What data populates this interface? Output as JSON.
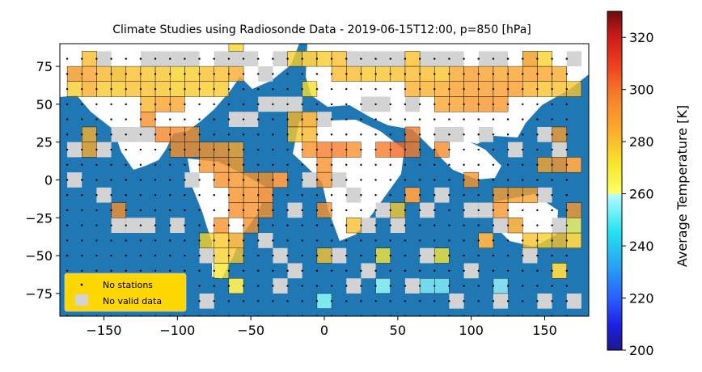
{
  "chart_data": {
    "type": "heatmap",
    "title": "Climate Studies using Radiosonde Data - 2019-06-15T12:00, p=850 [hPa]",
    "xlabel": "",
    "ylabel": "",
    "xlim": [
      -180,
      180
    ],
    "ylim": [
      -90,
      90
    ],
    "x_ticks": [
      -150,
      -100,
      -50,
      0,
      50,
      100,
      150
    ],
    "y_ticks": [
      -75,
      -50,
      -25,
      0,
      25,
      50,
      75
    ],
    "x_tick_labels": [
      "−150",
      "−100",
      "−50",
      "0",
      "50",
      "100",
      "150"
    ],
    "y_tick_labels": [
      "−75",
      "−50",
      "−25",
      "0",
      "25",
      "50",
      "75"
    ],
    "cell_size_deg": 10,
    "colorbar": {
      "label": "Average Temperature [K]",
      "range": [
        200,
        330
      ],
      "ticks": [
        200,
        220,
        240,
        260,
        280,
        300,
        320
      ],
      "tick_labels": [
        "200",
        "220",
        "240",
        "260",
        "280",
        "300",
        "320"
      ]
    },
    "legend": {
      "placement": "lower-left",
      "background": "#ffd700",
      "entries": [
        "No stations",
        "No valid data"
      ]
    },
    "colors": {
      "ocean": "#1f77b4",
      "land": "#ffffff",
      "no_valid_data": "#d3d3d3",
      "no_stations_marker": "#000000"
    },
    "no_valid_data_cells": [
      [
        -150,
        80
      ],
      [
        -170,
        70
      ],
      [
        -140,
        70
      ],
      [
        -120,
        80
      ],
      [
        -110,
        80
      ],
      [
        -100,
        80
      ],
      [
        -90,
        80
      ],
      [
        -70,
        80
      ],
      [
        -60,
        80
      ],
      [
        -50,
        80
      ],
      [
        -40,
        70
      ],
      [
        -30,
        80
      ],
      [
        -10,
        80
      ],
      [
        20,
        80
      ],
      [
        30,
        80
      ],
      [
        40,
        80
      ],
      [
        50,
        80
      ],
      [
        70,
        80
      ],
      [
        80,
        80
      ],
      [
        90,
        80
      ],
      [
        110,
        80
      ],
      [
        120,
        80
      ],
      [
        140,
        80
      ],
      [
        170,
        80
      ],
      [
        -170,
        20
      ],
      [
        -150,
        20
      ],
      [
        -140,
        30
      ],
      [
        -130,
        30
      ],
      [
        -120,
        30
      ],
      [
        -60,
        40
      ],
      [
        -50,
        40
      ],
      [
        -40,
        50
      ],
      [
        -30,
        50
      ],
      [
        -20,
        50
      ],
      [
        -10,
        40
      ],
      [
        0,
        40
      ],
      [
        30,
        50
      ],
      [
        40,
        50
      ],
      [
        60,
        50
      ],
      [
        80,
        30
      ],
      [
        90,
        30
      ],
      [
        110,
        30
      ],
      [
        130,
        20
      ],
      [
        150,
        30
      ],
      [
        160,
        20
      ],
      [
        170,
        10
      ],
      [
        -170,
        0
      ],
      [
        -150,
        -10
      ],
      [
        -140,
        -30
      ],
      [
        -130,
        -30
      ],
      [
        -120,
        -30
      ],
      [
        -100,
        -30
      ],
      [
        -90,
        0
      ],
      [
        -40,
        -10
      ],
      [
        -30,
        0
      ],
      [
        -20,
        -20
      ],
      [
        -10,
        0
      ],
      [
        10,
        0
      ],
      [
        20,
        -10
      ],
      [
        30,
        -30
      ],
      [
        40,
        -20
      ],
      [
        50,
        -30
      ],
      [
        60,
        -10
      ],
      [
        70,
        -20
      ],
      [
        80,
        -10
      ],
      [
        100,
        -20
      ],
      [
        110,
        -20
      ],
      [
        120,
        -30
      ],
      [
        130,
        -30
      ],
      [
        150,
        -10
      ],
      [
        160,
        -30
      ],
      [
        170,
        -40
      ],
      [
        -80,
        -50
      ],
      [
        -60,
        -40
      ],
      [
        -40,
        -40
      ],
      [
        -30,
        -50
      ],
      [
        -20,
        -60
      ],
      [
        10,
        -50
      ],
      [
        30,
        -60
      ],
      [
        40,
        -70
      ],
      [
        60,
        -70
      ],
      [
        70,
        -50
      ],
      [
        100,
        -60
      ],
      [
        110,
        -40
      ],
      [
        140,
        -50
      ],
      [
        160,
        -60
      ],
      [
        170,
        -80
      ],
      [
        -80,
        -80
      ],
      [
        -60,
        -70
      ],
      [
        -30,
        -70
      ],
      [
        0,
        -80
      ],
      [
        20,
        -70
      ],
      [
        90,
        -80
      ],
      [
        120,
        -80
      ],
      [
        150,
        -80
      ],
      [
        -150,
        -80
      ]
    ],
    "temperature_cells": [
      {
        "lon": -160,
        "lat": 80,
        "t": 281
      },
      {
        "lon": -160,
        "lat": 70,
        "t": 287
      },
      {
        "lon": -170,
        "lat": 70,
        "t": 287
      },
      {
        "lon": -150,
        "lat": 70,
        "t": 282
      },
      {
        "lon": -140,
        "lat": 70,
        "t": 279
      },
      {
        "lon": -130,
        "lat": 70,
        "t": 280
      },
      {
        "lon": -120,
        "lat": 70,
        "t": 279
      },
      {
        "lon": -110,
        "lat": 70,
        "t": 279
      },
      {
        "lon": -100,
        "lat": 70,
        "t": 276
      },
      {
        "lon": -90,
        "lat": 70,
        "t": 277
      },
      {
        "lon": -80,
        "lat": 70,
        "t": 280
      },
      {
        "lon": -70,
        "lat": 70,
        "t": 280
      },
      {
        "lon": -60,
        "lat": 70,
        "t": 284
      },
      {
        "lon": -60,
        "lat": 90,
        "t": 275
      },
      {
        "lon": -170,
        "lat": 60,
        "t": 277
      },
      {
        "lon": -160,
        "lat": 60,
        "t": 284
      },
      {
        "lon": -150,
        "lat": 60,
        "t": 278
      },
      {
        "lon": -140,
        "lat": 60,
        "t": 278
      },
      {
        "lon": -130,
        "lat": 60,
        "t": 280
      },
      {
        "lon": -120,
        "lat": 60,
        "t": 280
      },
      {
        "lon": -110,
        "lat": 60,
        "t": 279
      },
      {
        "lon": -100,
        "lat": 60,
        "t": 277
      },
      {
        "lon": -90,
        "lat": 60,
        "t": 278
      },
      {
        "lon": -80,
        "lat": 60,
        "t": 277
      },
      {
        "lon": -70,
        "lat": 60,
        "t": 278
      },
      {
        "lon": -120,
        "lat": 50,
        "t": 282
      },
      {
        "lon": -110,
        "lat": 50,
        "t": 287
      },
      {
        "lon": -100,
        "lat": 50,
        "t": 286
      },
      {
        "lon": -120,
        "lat": 40,
        "t": 293
      },
      {
        "lon": -110,
        "lat": 30,
        "t": 296
      },
      {
        "lon": -100,
        "lat": 30,
        "t": 294
      },
      {
        "lon": -90,
        "lat": 30,
        "t": 293
      },
      {
        "lon": -160,
        "lat": 30,
        "t": 283
      },
      {
        "lon": -160,
        "lat": 20,
        "t": 284
      },
      {
        "lon": -100,
        "lat": 20,
        "t": 292
      },
      {
        "lon": -90,
        "lat": 20,
        "t": 293
      },
      {
        "lon": -80,
        "lat": 20,
        "t": 291
      },
      {
        "lon": -70,
        "lat": 20,
        "t": 290
      },
      {
        "lon": -60,
        "lat": 20,
        "t": 285
      },
      {
        "lon": -80,
        "lat": 10,
        "t": 291
      },
      {
        "lon": -70,
        "lat": 10,
        "t": 292
      },
      {
        "lon": -60,
        "lat": 10,
        "t": 289
      },
      {
        "lon": -70,
        "lat": 0,
        "t": 292
      },
      {
        "lon": -60,
        "lat": 0,
        "t": 291
      },
      {
        "lon": -50,
        "lat": 0,
        "t": 291
      },
      {
        "lon": -40,
        "lat": 0,
        "t": 292
      },
      {
        "lon": -30,
        "lat": 0,
        "t": 293
      },
      {
        "lon": -60,
        "lat": -10,
        "t": 292
      },
      {
        "lon": -50,
        "lat": -10,
        "t": 292
      },
      {
        "lon": -40,
        "lat": -10,
        "t": 294
      },
      {
        "lon": -60,
        "lat": -20,
        "t": 293
      },
      {
        "lon": -50,
        "lat": -20,
        "t": 292
      },
      {
        "lon": -40,
        "lat": -20,
        "t": 292
      },
      {
        "lon": -140,
        "lat": -20,
        "t": 292
      },
      {
        "lon": -70,
        "lat": -30,
        "t": 292
      },
      {
        "lon": -50,
        "lat": -30,
        "t": 292
      },
      {
        "lon": -70,
        "lat": -40,
        "t": 278
      },
      {
        "lon": -60,
        "lat": -40,
        "t": 283
      },
      {
        "lon": -70,
        "lat": -50,
        "t": 276
      },
      {
        "lon": -60,
        "lat": -50,
        "t": 279
      },
      {
        "lon": -70,
        "lat": -60,
        "t": 270
      },
      {
        "lon": -60,
        "lat": -70,
        "t": 268
      },
      {
        "lon": -20,
        "lat": 80,
        "t": 277
      },
      {
        "lon": -10,
        "lat": 80,
        "t": 278
      },
      {
        "lon": 0,
        "lat": 80,
        "t": 277
      },
      {
        "lon": -10,
        "lat": 60,
        "t": 273
      },
      {
        "lon": 10,
        "lat": 80,
        "t": 280
      },
      {
        "lon": 10,
        "lat": 70,
        "t": 281
      },
      {
        "lon": -20,
        "lat": 40,
        "t": 282
      },
      {
        "lon": -10,
        "lat": 40,
        "t": 283
      },
      {
        "lon": -20,
        "lat": 30,
        "t": 278
      },
      {
        "lon": -10,
        "lat": 30,
        "t": 282
      },
      {
        "lon": -10,
        "lat": 20,
        "t": 292
      },
      {
        "lon": 0,
        "lat": 20,
        "t": 298
      },
      {
        "lon": 10,
        "lat": 20,
        "t": 298
      },
      {
        "lon": 20,
        "lat": 20,
        "t": 292
      },
      {
        "lon": 0,
        "lat": 10,
        "t": 292
      },
      {
        "lon": 0,
        "lat": 0,
        "t": 293
      },
      {
        "lon": 0,
        "lat": -20,
        "t": 292
      },
      {
        "lon": 0,
        "lat": -50,
        "t": 279
      },
      {
        "lon": 0,
        "lat": -80,
        "t": 252
      },
      {
        "lon": 20,
        "lat": -30,
        "t": 280
      },
      {
        "lon": 60,
        "lat": -10,
        "t": 292
      },
      {
        "lon": 40,
        "lat": -50,
        "t": 270
      },
      {
        "lon": 40,
        "lat": -70,
        "t": 253
      },
      {
        "lon": 40,
        "lat": 20,
        "t": 298
      },
      {
        "lon": 50,
        "lat": 20,
        "t": 302
      },
      {
        "lon": 60,
        "lat": 20,
        "t": 298
      },
      {
        "lon": 60,
        "lat": 30,
        "t": 298
      },
      {
        "lon": 80,
        "lat": 20,
        "t": 294
      },
      {
        "lon": 60,
        "lat": 80,
        "t": 280
      },
      {
        "lon": 60,
        "lat": 70,
        "t": 281
      },
      {
        "lon": 70,
        "lat": 70,
        "t": 281
      },
      {
        "lon": 80,
        "lat": 70,
        "t": 279
      },
      {
        "lon": 90,
        "lat": 70,
        "t": 286
      },
      {
        "lon": 100,
        "lat": 70,
        "t": 289
      },
      {
        "lon": 110,
        "lat": 70,
        "t": 287
      },
      {
        "lon": 120,
        "lat": 70,
        "t": 286
      },
      {
        "lon": 130,
        "lat": 70,
        "t": 287
      },
      {
        "lon": 140,
        "lat": 70,
        "t": 288
      },
      {
        "lon": 150,
        "lat": 70,
        "t": 286
      },
      {
        "lon": 160,
        "lat": 70,
        "t": 284
      },
      {
        "lon": 40,
        "lat": 70,
        "t": 279
      },
      {
        "lon": 50,
        "lat": 70,
        "t": 280
      },
      {
        "lon": 30,
        "lat": 70,
        "t": 278
      },
      {
        "lon": 20,
        "lat": 70,
        "t": 281
      },
      {
        "lon": 60,
        "lat": 60,
        "t": 283
      },
      {
        "lon": 70,
        "lat": 60,
        "t": 283
      },
      {
        "lon": 80,
        "lat": 60,
        "t": 284
      },
      {
        "lon": 90,
        "lat": 60,
        "t": 288
      },
      {
        "lon": 100,
        "lat": 60,
        "t": 288
      },
      {
        "lon": 110,
        "lat": 60,
        "t": 289
      },
      {
        "lon": 120,
        "lat": 60,
        "t": 288
      },
      {
        "lon": 130,
        "lat": 60,
        "t": 289
      },
      {
        "lon": 140,
        "lat": 60,
        "t": 283
      },
      {
        "lon": 150,
        "lat": 60,
        "t": 279
      },
      {
        "lon": 160,
        "lat": 60,
        "t": 280
      },
      {
        "lon": 170,
        "lat": 60,
        "t": 279
      },
      {
        "lon": 80,
        "lat": 50,
        "t": 286
      },
      {
        "lon": 90,
        "lat": 50,
        "t": 287
      },
      {
        "lon": 100,
        "lat": 50,
        "t": 290
      },
      {
        "lon": 110,
        "lat": 50,
        "t": 291
      },
      {
        "lon": 120,
        "lat": 50,
        "t": 290
      },
      {
        "lon": 140,
        "lat": 80,
        "t": 286
      },
      {
        "lon": 150,
        "lat": 80,
        "t": 276
      },
      {
        "lon": 120,
        "lat": -10,
        "t": 288
      },
      {
        "lon": 130,
        "lat": -10,
        "t": 288
      },
      {
        "lon": 140,
        "lat": -10,
        "t": 287
      },
      {
        "lon": 120,
        "lat": -20,
        "t": 291
      },
      {
        "lon": 100,
        "lat": 0,
        "t": 291
      },
      {
        "lon": 150,
        "lat": 10,
        "t": 286
      },
      {
        "lon": 160,
        "lat": 10,
        "t": 290
      },
      {
        "lon": 170,
        "lat": 10,
        "t": 289
      },
      {
        "lon": 160,
        "lat": 30,
        "t": 289
      },
      {
        "lon": 110,
        "lat": -40,
        "t": 285
      },
      {
        "lon": 130,
        "lat": -30,
        "t": 285
      },
      {
        "lon": 140,
        "lat": -40,
        "t": 279
      },
      {
        "lon": 150,
        "lat": -40,
        "t": 276
      },
      {
        "lon": 160,
        "lat": -40,
        "t": 280
      },
      {
        "lon": 160,
        "lat": -60,
        "t": 275
      },
      {
        "lon": 170,
        "lat": -40,
        "t": 276
      },
      {
        "lon": 170,
        "lat": -30,
        "t": 262
      },
      {
        "lon": 170,
        "lat": -20,
        "t": 290
      },
      {
        "lon": 120,
        "lat": -70,
        "t": 257
      },
      {
        "lon": 70,
        "lat": -70,
        "t": 255
      },
      {
        "lon": 80,
        "lat": -70,
        "t": 255
      },
      {
        "lon": 80,
        "lat": -50,
        "t": 270
      },
      {
        "lon": 50,
        "lat": -20,
        "t": 278
      },
      {
        "lon": -80,
        "lat": -40,
        "t": 276
      }
    ]
  }
}
